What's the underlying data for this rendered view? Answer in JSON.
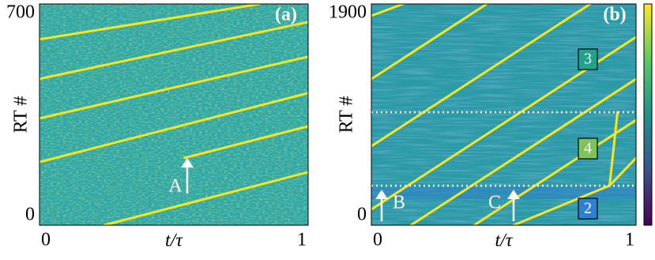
{
  "chart_data": [
    {
      "type": "line",
      "panel_label": "(a)",
      "ylabel": "RT #",
      "xlabel": "t/τ",
      "xlim": [
        0,
        1
      ],
      "ylim": [
        0,
        700
      ],
      "xticks": [
        0,
        1
      ],
      "yticks": [
        0,
        700
      ],
      "series": [
        {
          "color": "#f7e61c",
          "x": [
            0,
            0.82
          ],
          "values": [
            588,
            700
          ]
        },
        {
          "color": "#f7e61c",
          "x": [
            0,
            1
          ],
          "values": [
            463,
            643
          ]
        },
        {
          "color": "#f7e61c",
          "x": [
            0,
            1
          ],
          "values": [
            338,
            533
          ]
        },
        {
          "color": "#f7e61c",
          "x": [
            0,
            1
          ],
          "values": [
            200,
            418
          ]
        },
        {
          "color": "#f7e61c",
          "x": [
            0.54,
            1
          ],
          "values": [
            213,
            313
          ]
        },
        {
          "color": "#f7e61c",
          "x": [
            0.24,
            1
          ],
          "values": [
            0,
            168
          ]
        }
      ],
      "annotations": [
        "A"
      ]
    },
    {
      "type": "line",
      "panel_label": "(b)",
      "ylabel": "RT #",
      "xlabel": "t/τ",
      "xlim": [
        0,
        1
      ],
      "ylim": [
        0,
        1900
      ],
      "xticks": [
        0,
        1
      ],
      "yticks": [
        0,
        1900
      ],
      "series": [
        {
          "color": "#f7e61c",
          "x": [
            0,
            0.12
          ],
          "values": [
            1798,
            1900
          ]
        },
        {
          "color": "#f7e61c",
          "x": [
            0,
            0.436
          ],
          "values": [
            1255,
            1900
          ]
        },
        {
          "color": "#f7e61c",
          "x": [
            0,
            0.827
          ],
          "values": [
            679,
            1900
          ]
        },
        {
          "color": "#f7e61c",
          "x": [
            0,
            1
          ],
          "values": [
            136,
            1616
          ]
        },
        {
          "color": "#f7e61c",
          "x": [
            0.149,
            1
          ],
          "values": [
            0,
            1256
          ]
        },
        {
          "color": "#f7e61c",
          "x": [
            0.388,
            1
          ],
          "values": [
            0,
            903
          ]
        },
        {
          "color": "#f7e61c",
          "x": [
            0.537,
            0.9,
            1
          ],
          "values": [
            0,
            340,
            577
          ]
        },
        {
          "color": "#f7e61c",
          "x": [
            0.9,
            0.93
          ],
          "values": [
            340,
            970
          ]
        }
      ],
      "hlines": [
        970,
        339
      ],
      "annotations": [
        "B",
        "C"
      ],
      "boxes": [
        {
          "label": "3",
          "color": "#1fa38c"
        },
        {
          "label": "4",
          "color": "#7fc35a"
        },
        {
          "label": "2",
          "color": "#2f7fd3"
        }
      ]
    }
  ]
}
